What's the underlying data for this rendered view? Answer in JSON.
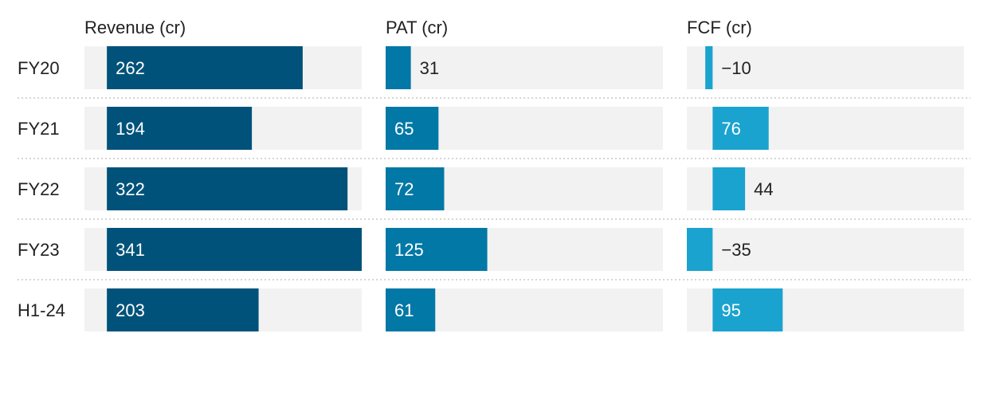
{
  "chart_data": {
    "type": "bar",
    "orientation": "horizontal",
    "layout": "small-multiples",
    "categories": [
      "FY20",
      "FY21",
      "FY22",
      "FY23",
      "H1-24"
    ],
    "series": [
      {
        "name": "Revenue (cr)",
        "values": [
          262,
          194,
          322,
          341,
          203
        ],
        "xlim": [
          -30,
          341
        ],
        "color": "#01527a"
      },
      {
        "name": "PAT (cr)",
        "values": [
          31,
          65,
          72,
          125,
          61
        ],
        "xlim": [
          0,
          341
        ],
        "color": "#0278a6"
      },
      {
        "name": "FCF (cr)",
        "values": [
          -10,
          76,
          44,
          -35,
          95
        ],
        "xlim": [
          -35,
          341
        ],
        "color": "#1aa3cf"
      }
    ],
    "value_labels": [
      [
        "262",
        "194",
        "322",
        "341",
        "203"
      ],
      [
        "31",
        "65",
        "72",
        "125",
        "61"
      ],
      [
        "−10",
        "76",
        "44",
        "−35",
        "95"
      ]
    ],
    "background_color": "#f2f2f2",
    "grid": false
  }
}
